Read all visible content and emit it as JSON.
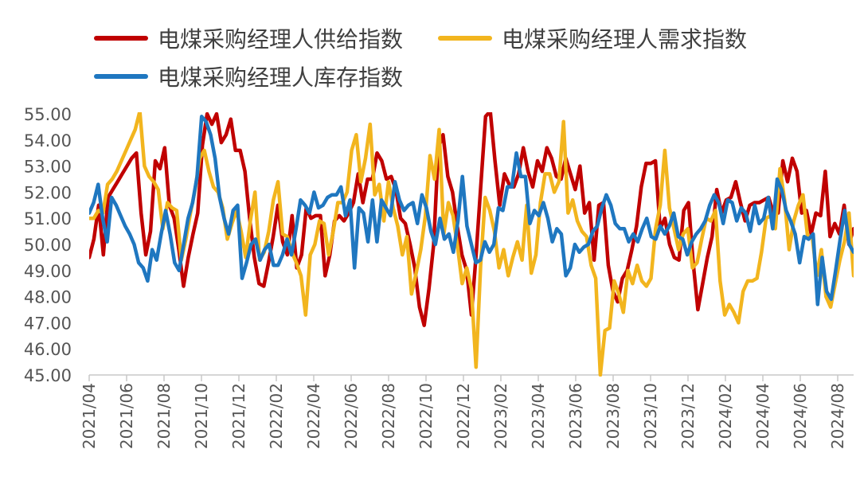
{
  "chart_data": {
    "type": "line",
    "title": "",
    "xlabel": "",
    "ylabel": "",
    "ylim": [
      45,
      55
    ],
    "yticks": [
      "45.00",
      "46.00",
      "47.00",
      "48.00",
      "49.00",
      "50.00",
      "51.00",
      "52.00",
      "53.00",
      "54.00",
      "55.00"
    ],
    "x_range": [
      "2021-04",
      "2024-09"
    ],
    "x_tick_labels": [
      "2021/04",
      "2021/06",
      "2021/08",
      "2021/10",
      "2021/12",
      "2022/02",
      "2022/04",
      "2022/06",
      "2022/08",
      "2022/10",
      "2022/12",
      "2023/02",
      "2023/04",
      "2023/06",
      "2023/08",
      "2023/10",
      "2023/12",
      "2024/02",
      "2024/04",
      "2024/06",
      "2024/08"
    ],
    "legend_position": "top",
    "series": [
      {
        "name": "电煤采购经理人供给指数",
        "color": "#C00000",
        "values": [
          49.5,
          50.2,
          51.5,
          49.6,
          51.8,
          52.1,
          52.4,
          52.7,
          53.0,
          53.3,
          53.5,
          51.2,
          49.6,
          50.5,
          53.2,
          52.9,
          53.7,
          51.5,
          51.0,
          49.8,
          48.4,
          49.5,
          50.4,
          51.2,
          53.8,
          55.0,
          54.6,
          55.0,
          53.9,
          54.2,
          54.8,
          53.6,
          53.6,
          52.8,
          51.0,
          49.5,
          48.5,
          48.4,
          49.3,
          50.3,
          51.5,
          50.1,
          49.6,
          51.1,
          49.1,
          49.6,
          51.4,
          51.0,
          51.1,
          51.1,
          48.8,
          49.6,
          50.9,
          51.1,
          50.9,
          51.2,
          51.6,
          52.7,
          51.6,
          52.5,
          52.5,
          53.5,
          53.2,
          52.5,
          52.6,
          52.1,
          51.0,
          50.8,
          50.0,
          49.1,
          47.6,
          46.9,
          48.3,
          50.0,
          53.7,
          54.2,
          52.6,
          52.0,
          50.7,
          49.6,
          49.0,
          47.3,
          49.6,
          52.3,
          54.9,
          55.1,
          53.2,
          51.5,
          52.7,
          52.3,
          52.2,
          52.7,
          53.7,
          52.8,
          52.2,
          53.2,
          52.8,
          53.7,
          53.3,
          52.6,
          52.5,
          53.3,
          52.7,
          52.1,
          53.0,
          51.2,
          51.6,
          49.4,
          51.5,
          51.6,
          49.2,
          48.2,
          47.8,
          48.7,
          49.0,
          49.8,
          50.7,
          52.2,
          53.1,
          53.1,
          53.2,
          50.6,
          51.0,
          50.0,
          49.5,
          49.4,
          51.3,
          51.6,
          49.3,
          47.5,
          48.5,
          49.5,
          50.3,
          52.1,
          51.2,
          51.7,
          51.8,
          52.4,
          51.6,
          50.9,
          51.5,
          51.6,
          51.6,
          51.7,
          51.8,
          51.2,
          51.2,
          53.2,
          52.4,
          53.3,
          52.8,
          51.2,
          51.3,
          50.4,
          51.2,
          51.1,
          52.8,
          50.3,
          50.8,
          50.4,
          51.5,
          50.0,
          50.6
        ]
      },
      {
        "name": "电煤采购经理人需求指数",
        "color": "#F2B51E",
        "values": [
          51.0,
          51.0,
          51.3,
          51.2,
          52.3,
          52.5,
          52.8,
          53.2,
          53.6,
          54.0,
          54.4,
          55.1,
          53.0,
          52.6,
          52.4,
          52.1,
          50.6,
          51.6,
          51.4,
          51.3,
          49.4,
          50.2,
          51.2,
          52.1,
          53.3,
          53.6,
          52.8,
          52.2,
          52.0,
          51.4,
          50.2,
          50.8,
          51.3,
          50.5,
          49.5,
          50.9,
          52.0,
          49.4,
          49.7,
          50.5,
          51.7,
          52.4,
          50.4,
          50.3,
          49.7,
          49.3,
          48.8,
          47.3,
          49.6,
          50.0,
          50.9,
          50.8,
          49.6,
          50.5,
          51.6,
          51.6,
          52.0,
          53.6,
          54.2,
          52.4,
          53.3,
          54.6,
          51.9,
          52.3,
          50.9,
          52.4,
          51.4,
          50.7,
          49.6,
          50.3,
          48.1,
          48.9,
          49.8,
          51.1,
          53.4,
          52.5,
          54.4,
          50.4,
          51.6,
          51.1,
          49.9,
          48.5,
          49.1,
          48.3,
          45.3,
          49.2,
          51.8,
          51.3,
          50.5,
          49.1,
          49.8,
          48.8,
          49.5,
          50.1,
          49.4,
          51.5,
          48.9,
          49.6,
          51.6,
          52.7,
          52.7,
          52.0,
          52.4,
          54.7,
          51.2,
          51.7,
          50.9,
          50.5,
          50.3,
          49.2,
          48.7,
          45.0,
          46.7,
          46.8,
          48.6,
          48.1,
          47.4,
          49.0,
          48.5,
          49.2,
          48.6,
          48.4,
          48.7,
          50.6,
          51.5,
          53.6,
          51.4,
          50.6,
          49.8,
          50.4,
          50.6,
          49.1,
          49.3,
          50.2,
          51.0,
          50.9,
          51.3,
          48.6,
          47.3,
          47.7,
          47.4,
          47.0,
          48.2,
          48.6,
          48.6,
          48.7,
          49.7,
          51.0,
          51.1,
          50.6,
          52.9,
          51.7,
          49.8,
          50.9,
          51.5,
          51.9,
          50.3,
          50.3,
          48.8,
          49.8,
          48.0,
          47.6,
          48.5,
          49.4,
          50.1,
          51.2,
          48.8
        ]
      },
      {
        "name": "电煤采购经理人库存指数",
        "color": "#1F77C0",
        "values": [
          51.2,
          51.6,
          52.3,
          51.0,
          50.1,
          51.8,
          51.5,
          51.1,
          50.7,
          50.4,
          50.0,
          49.3,
          49.1,
          48.6,
          49.8,
          49.4,
          50.4,
          51.3,
          50.4,
          49.3,
          49.0,
          50.0,
          51.0,
          51.6,
          52.6,
          54.9,
          54.7,
          54.2,
          53.3,
          51.8,
          51.0,
          50.4,
          51.3,
          51.5,
          48.7,
          49.3,
          50.0,
          50.2,
          49.4,
          49.8,
          50.0,
          49.2,
          49.2,
          49.6,
          50.2,
          49.6,
          50.6,
          51.7,
          51.5,
          51.2,
          52.0,
          51.4,
          51.5,
          51.8,
          51.9,
          51.9,
          52.2,
          51.1,
          51.7,
          49.1,
          51.4,
          51.2,
          50.1,
          51.7,
          50.1,
          51.7,
          51.4,
          51.1,
          52.4,
          51.7,
          51.3,
          51.5,
          51.6,
          50.8,
          51.9,
          51.4,
          50.5,
          50.0,
          51.0,
          50.2,
          50.4,
          49.7,
          50.9,
          52.6,
          50.7,
          50.0,
          49.3,
          49.4,
          50.1,
          49.7,
          50.0,
          51.4,
          51.3,
          52.2,
          52.2,
          53.5,
          52.6,
          52.6,
          50.8,
          51.3,
          51.1,
          51.6,
          51.0,
          50.1,
          50.6,
          50.4,
          48.8,
          49.1,
          50.0,
          49.7,
          49.9,
          50.0,
          50.5,
          50.7,
          51.4,
          51.9,
          51.5,
          50.8,
          50.6,
          50.6,
          50.1,
          50.4,
          50.1,
          50.6,
          51.0,
          50.3,
          50.2,
          50.7,
          50.4,
          50.7,
          51.2,
          50.3,
          50.2,
          49.6,
          50.1,
          50.4,
          50.6,
          50.9,
          51.5,
          51.9,
          51.6,
          50.8,
          51.7,
          51.6,
          50.9,
          51.4,
          51.2,
          50.5,
          51.5,
          50.8,
          51.0,
          51.8,
          50.6,
          52.5,
          52.1,
          51.3,
          50.9,
          50.4,
          49.3,
          50.3,
          50.2,
          50.4,
          47.7,
          49.5,
          48.2,
          47.9,
          49.0,
          50.2,
          51.3,
          50.0,
          49.7
        ]
      }
    ]
  },
  "legend": [
    {
      "label": "电煤采购经理人供给指数",
      "color": "#C00000"
    },
    {
      "label": "电煤采购经理人需求指数",
      "color": "#F2B51E"
    },
    {
      "label": "电煤采购经理人库存指数",
      "color": "#1F77C0"
    }
  ]
}
